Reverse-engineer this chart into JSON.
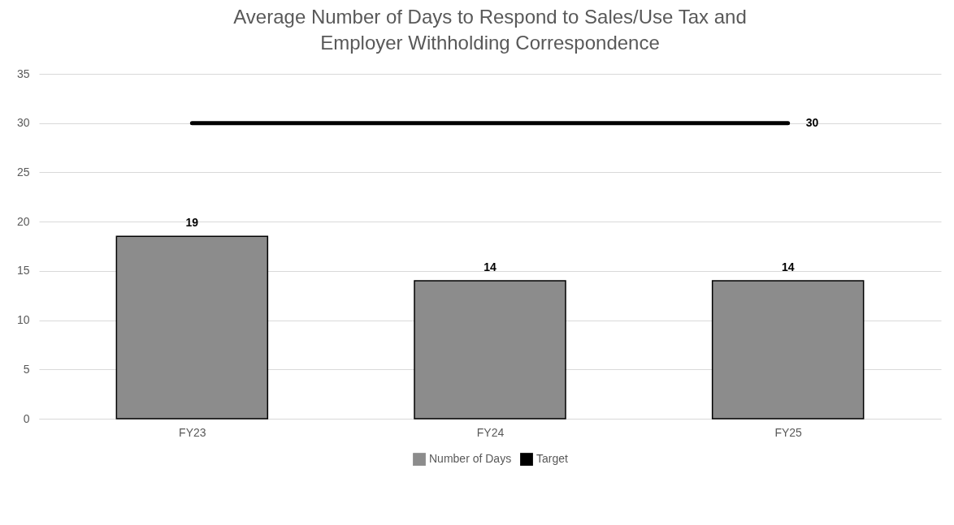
{
  "chart_data": {
    "type": "bar",
    "title": "Average Number of Days to Respond to Sales/Use Tax and Employer Withholding Correspondence",
    "categories": [
      "FY23",
      "FY24",
      "FY25"
    ],
    "series": [
      {
        "name": "Number of Days",
        "color": "#8c8c8c",
        "values": [
          18.5,
          14,
          14
        ],
        "value_labels": [
          "19",
          "14",
          "14"
        ]
      },
      {
        "name": "Target",
        "type": "line",
        "color": "#000000",
        "values": [
          30,
          30,
          30
        ],
        "value_labels": [
          null,
          null,
          "30"
        ]
      }
    ],
    "ylim": [
      0,
      35
    ],
    "yticks": [
      0,
      5,
      10,
      15,
      20,
      25,
      30,
      35
    ],
    "grid": "y",
    "legend": "bottom"
  }
}
